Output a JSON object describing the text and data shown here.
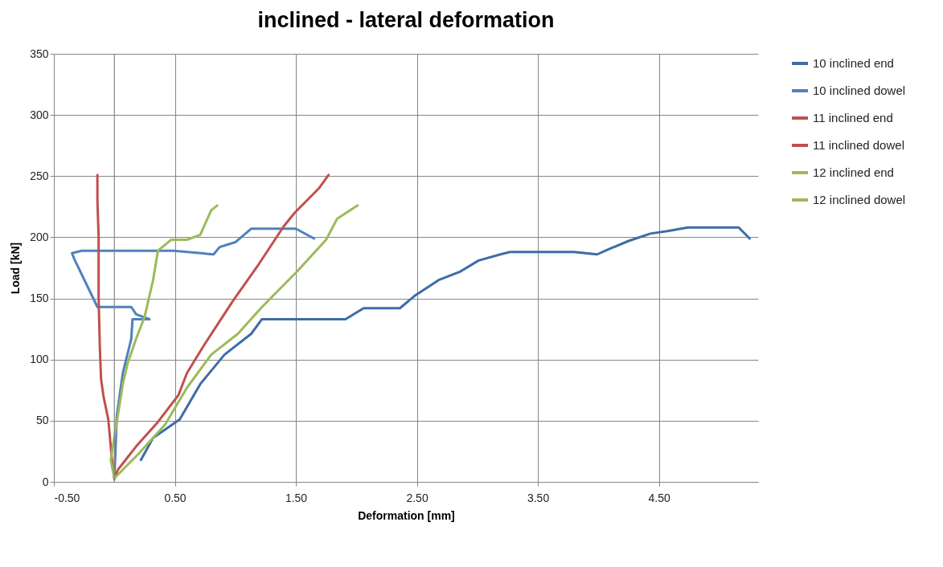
{
  "chart_data": {
    "type": "line",
    "title": "inclined - lateral deformation",
    "xlabel": "Deformation [mm]",
    "ylabel": "Load [kN]",
    "xlim": [
      -0.5,
      5.32
    ],
    "ylim": [
      0,
      350
    ],
    "xticks": [
      {
        "value": -0.5,
        "label": "-0.50"
      },
      {
        "value": 0.5,
        "label": "0.50"
      },
      {
        "value": 1.5,
        "label": "1.50"
      },
      {
        "value": 2.5,
        "label": "2.50"
      },
      {
        "value": 3.5,
        "label": "3.50"
      },
      {
        "value": 4.5,
        "label": "4.50"
      }
    ],
    "yticks": [
      0,
      50,
      100,
      150,
      200,
      250,
      300,
      350
    ],
    "grid": true,
    "legend": "right",
    "ref_lines": [
      {
        "axis": "x",
        "value": 0,
        "label": null,
        "color": "#868686"
      }
    ],
    "series": [
      {
        "name": "10 inclined end",
        "color": "#3e6ca6",
        "x": [
          0.22,
          0.32,
          0.54,
          0.71,
          0.91,
          1.13,
          1.22,
          1.91,
          2.06,
          2.36,
          2.48,
          2.68,
          2.86,
          3.01,
          3.19,
          3.27,
          3.8,
          3.99,
          4.08,
          4.25,
          4.43,
          4.57,
          4.74,
          5.16,
          5.25
        ],
        "values": [
          18,
          36,
          51,
          80,
          104,
          121,
          133,
          133,
          142,
          142,
          152,
          165,
          172,
          181,
          186,
          188,
          188,
          186,
          190,
          197,
          203,
          205,
          208,
          208,
          199
        ]
      },
      {
        "name": "10 inclined dowel",
        "color": "#4f81bd",
        "x": [
          0,
          0.02,
          0.07,
          0.14,
          0.15,
          0.29,
          0.18,
          0.14,
          -0.14,
          -0.33,
          -0.35,
          -0.27,
          0.49,
          0.82,
          0.87,
          1.0,
          1.13,
          1.5,
          1.65
        ],
        "values": [
          2,
          54,
          89,
          117,
          133,
          133,
          137,
          143,
          143,
          182,
          187,
          189,
          189,
          186,
          192,
          196,
          207,
          207,
          199
        ]
      },
      {
        "name": "11 inclined end",
        "color": "#c0504d",
        "x": [
          0,
          0.03,
          0.18,
          0.36,
          0.53,
          0.6,
          0.73,
          0.98,
          1.18,
          1.4,
          1.49,
          1.6,
          1.69,
          1.77
        ],
        "values": [
          3,
          10,
          29,
          49,
          71,
          89,
          110,
          148,
          176,
          209,
          220,
          231,
          240,
          251
        ]
      },
      {
        "name": "11 inclined dowel",
        "color": "#c0504d",
        "x": [
          0,
          -0.02,
          -0.05,
          -0.09,
          -0.11,
          -0.12,
          -0.13,
          -0.13,
          -0.14,
          -0.14
        ],
        "values": [
          3,
          18,
          51,
          70,
          84,
          110,
          150,
          200,
          230,
          251
        ]
      },
      {
        "name": "12 inclined end",
        "color": "#9bbb59",
        "x": [
          0,
          0.2,
          0.42,
          0.6,
          0.8,
          1.02,
          1.22,
          1.51,
          1.75,
          1.84,
          2.01
        ],
        "values": [
          3,
          23,
          47,
          77,
          104,
          121,
          143,
          172,
          198,
          215,
          226
        ]
      },
      {
        "name": "12 inclined dowel",
        "color": "#9bbb59",
        "x": [
          0,
          -0.03,
          0.07,
          0.11,
          0.18,
          0.25,
          0.32,
          0.36,
          0.47,
          0.6,
          0.71,
          0.8,
          0.85
        ],
        "values": [
          3,
          18,
          80,
          97,
          117,
          135,
          165,
          189,
          198,
          198,
          202,
          222,
          226
        ]
      }
    ]
  }
}
